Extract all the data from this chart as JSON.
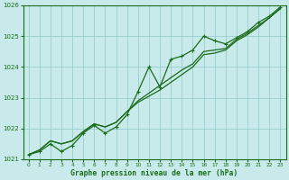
{
  "x": [
    0,
    1,
    2,
    3,
    4,
    5,
    6,
    7,
    8,
    9,
    10,
    11,
    12,
    13,
    14,
    15,
    16,
    17,
    18,
    19,
    20,
    21,
    22,
    23
  ],
  "line_marked": [
    1021.15,
    1021.25,
    1021.5,
    1021.25,
    1021.45,
    1021.85,
    1022.1,
    1021.85,
    1022.05,
    1022.45,
    1023.2,
    1024.0,
    1023.35,
    1024.25,
    1024.35,
    1024.55,
    1025.0,
    1024.85,
    1024.75,
    1024.95,
    1025.15,
    1025.45,
    1025.65,
    1025.95
  ],
  "line_smooth1": [
    1021.15,
    1021.3,
    1021.6,
    1021.5,
    1021.6,
    1021.9,
    1022.15,
    1022.05,
    1022.2,
    1022.55,
    1022.9,
    1023.15,
    1023.4,
    1023.65,
    1023.9,
    1024.1,
    1024.5,
    1024.55,
    1024.6,
    1024.9,
    1025.1,
    1025.35,
    1025.6,
    1025.9
  ],
  "line_smooth2": [
    1021.15,
    1021.3,
    1021.6,
    1021.5,
    1021.6,
    1021.9,
    1022.15,
    1022.05,
    1022.2,
    1022.55,
    1022.85,
    1023.05,
    1023.25,
    1023.5,
    1023.75,
    1024.0,
    1024.4,
    1024.45,
    1024.55,
    1024.85,
    1025.05,
    1025.3,
    1025.6,
    1025.9
  ],
  "line_color": "#1a6b1a",
  "bg_color": "#c8eaea",
  "grid_color": "#90c8c8",
  "text_color": "#1a6b1a",
  "xlabel": "Graphe pression niveau de la mer (hPa)",
  "ylim": [
    1021.0,
    1026.0
  ],
  "xlim": [
    -0.5,
    23.5
  ],
  "yticks": [
    1021,
    1022,
    1023,
    1024,
    1025,
    1026
  ],
  "xticks": [
    0,
    1,
    2,
    3,
    4,
    5,
    6,
    7,
    8,
    9,
    10,
    11,
    12,
    13,
    14,
    15,
    16,
    17,
    18,
    19,
    20,
    21,
    22,
    23
  ]
}
